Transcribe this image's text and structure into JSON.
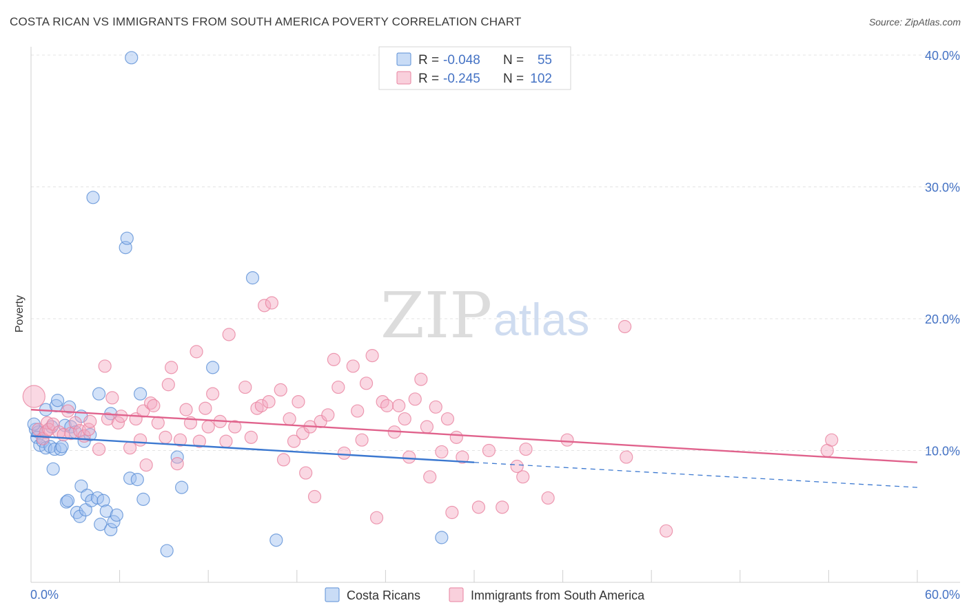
{
  "title": "COSTA RICAN VS IMMIGRANTS FROM SOUTH AMERICA POVERTY CORRELATION CHART",
  "source": "Source: ZipAtlas.com",
  "watermark": {
    "zip": "ZIP",
    "atlas": "atlas"
  },
  "legend": {
    "r_label": "R =",
    "n_label": "N =",
    "rows": [
      {
        "r": "-0.048",
        "n": "55",
        "color": "#9dbfef"
      },
      {
        "r": "-0.245",
        "n": "102",
        "color": "#f4a9c0"
      }
    ]
  },
  "bottom_legend": [
    "Costa Ricans",
    "Immigrants from South America"
  ],
  "chart_data": {
    "type": "scatter",
    "title": "COSTA RICAN VS IMMIGRANTS FROM SOUTH AMERICA POVERTY CORRELATION CHART",
    "xlabel": "",
    "ylabel": "Poverty",
    "xlim": [
      0,
      60
    ],
    "ylim": [
      0,
      40
    ],
    "x_tick_labels": [
      "0.0%",
      "60.0%"
    ],
    "y_ticks": [
      10,
      20,
      30,
      40
    ],
    "y_tick_labels": [
      "10.0%",
      "20.0%",
      "30.0%",
      "40.0%"
    ],
    "grid": true,
    "legend_position": "top-center",
    "series": [
      {
        "name": "Costa Ricans",
        "color": "#9dbfef",
        "stroke": "#5b8fd6",
        "trend": {
          "x": [
            0,
            30
          ],
          "y": [
            11.1,
            9.1
          ],
          "dash_to": [
            60,
            7.2
          ],
          "color": "#3b78d0"
        },
        "points": [
          [
            0.3,
            11.6
          ],
          [
            0.5,
            11.4
          ],
          [
            0.4,
            11.0
          ],
          [
            0.6,
            10.4
          ],
          [
            0.8,
            10.7
          ],
          [
            1.0,
            13.1
          ],
          [
            1.0,
            10.2
          ],
          [
            1.3,
            10.3
          ],
          [
            1.4,
            11.8
          ],
          [
            1.5,
            8.6
          ],
          [
            1.6,
            10.1
          ],
          [
            1.7,
            13.4
          ],
          [
            1.8,
            13.8
          ],
          [
            2.0,
            10.1
          ],
          [
            2.1,
            10.3
          ],
          [
            2.3,
            11.9
          ],
          [
            2.4,
            6.1
          ],
          [
            2.5,
            6.2
          ],
          [
            2.6,
            13.3
          ],
          [
            2.7,
            11.8
          ],
          [
            3.0,
            11.4
          ],
          [
            3.1,
            5.3
          ],
          [
            3.3,
            5.0
          ],
          [
            3.4,
            12.6
          ],
          [
            3.4,
            7.3
          ],
          [
            3.6,
            10.7
          ],
          [
            3.7,
            5.5
          ],
          [
            3.8,
            6.6
          ],
          [
            4.0,
            11.2
          ],
          [
            4.1,
            6.2
          ],
          [
            4.2,
            29.2
          ],
          [
            4.5,
            6.4
          ],
          [
            4.6,
            14.3
          ],
          [
            4.7,
            4.4
          ],
          [
            4.9,
            6.2
          ],
          [
            5.1,
            5.4
          ],
          [
            5.4,
            12.8
          ],
          [
            5.4,
            4.0
          ],
          [
            5.6,
            4.6
          ],
          [
            5.8,
            5.1
          ],
          [
            6.4,
            25.4
          ],
          [
            6.5,
            26.1
          ],
          [
            6.7,
            7.9
          ],
          [
            6.8,
            39.8
          ],
          [
            7.2,
            7.8
          ],
          [
            7.4,
            14.3
          ],
          [
            7.6,
            6.3
          ],
          [
            9.2,
            2.4
          ],
          [
            9.9,
            9.5
          ],
          [
            10.2,
            7.2
          ],
          [
            12.3,
            16.3
          ],
          [
            15.0,
            23.1
          ],
          [
            16.6,
            3.2
          ],
          [
            27.8,
            3.4
          ],
          [
            0.2,
            12.0
          ]
        ]
      },
      {
        "name": "Immigrants from South America",
        "color": "#f4a9c0",
        "stroke": "#e8829f",
        "trend": {
          "x": [
            0,
            60
          ],
          "y": [
            13.1,
            9.1
          ],
          "color": "#e0628c"
        },
        "points": [
          [
            0.2,
            14.1
          ],
          [
            0.5,
            11.6
          ],
          [
            0.8,
            10.9
          ],
          [
            1.0,
            11.4
          ],
          [
            1.1,
            12.1
          ],
          [
            1.2,
            11.6
          ],
          [
            1.5,
            12.0
          ],
          [
            1.9,
            11.4
          ],
          [
            2.2,
            11.2
          ],
          [
            2.5,
            13.0
          ],
          [
            2.7,
            11.3
          ],
          [
            3.0,
            12.1
          ],
          [
            3.3,
            11.5
          ],
          [
            3.6,
            11.1
          ],
          [
            3.9,
            11.6
          ],
          [
            4.0,
            12.2
          ],
          [
            4.6,
            10.1
          ],
          [
            5.0,
            16.4
          ],
          [
            5.2,
            12.4
          ],
          [
            5.5,
            14.0
          ],
          [
            5.9,
            12.1
          ],
          [
            6.1,
            12.6
          ],
          [
            6.7,
            10.2
          ],
          [
            7.1,
            12.4
          ],
          [
            7.4,
            10.8
          ],
          [
            7.6,
            13.0
          ],
          [
            7.8,
            8.9
          ],
          [
            8.1,
            13.6
          ],
          [
            8.3,
            13.4
          ],
          [
            8.6,
            12.1
          ],
          [
            9.1,
            11.0
          ],
          [
            9.3,
            15.0
          ],
          [
            9.5,
            16.3
          ],
          [
            9.9,
            9.0
          ],
          [
            10.1,
            10.8
          ],
          [
            10.5,
            13.1
          ],
          [
            10.8,
            12.1
          ],
          [
            11.2,
            17.5
          ],
          [
            11.4,
            10.7
          ],
          [
            11.8,
            13.2
          ],
          [
            12.0,
            11.8
          ],
          [
            12.3,
            14.3
          ],
          [
            12.8,
            12.2
          ],
          [
            13.2,
            10.7
          ],
          [
            13.4,
            18.8
          ],
          [
            13.8,
            11.8
          ],
          [
            14.5,
            14.8
          ],
          [
            14.9,
            11.0
          ],
          [
            15.3,
            13.2
          ],
          [
            15.6,
            13.4
          ],
          [
            15.8,
            21.0
          ],
          [
            16.1,
            13.7
          ],
          [
            16.3,
            21.2
          ],
          [
            16.9,
            14.6
          ],
          [
            17.1,
            9.3
          ],
          [
            17.5,
            12.4
          ],
          [
            17.8,
            10.7
          ],
          [
            18.1,
            13.7
          ],
          [
            18.4,
            11.3
          ],
          [
            18.6,
            8.3
          ],
          [
            18.9,
            11.8
          ],
          [
            19.2,
            6.5
          ],
          [
            19.6,
            12.2
          ],
          [
            20.1,
            12.7
          ],
          [
            20.5,
            16.9
          ],
          [
            20.8,
            14.8
          ],
          [
            21.2,
            9.8
          ],
          [
            21.8,
            16.4
          ],
          [
            22.1,
            13.0
          ],
          [
            22.4,
            10.8
          ],
          [
            22.7,
            15.1
          ],
          [
            23.1,
            17.2
          ],
          [
            23.4,
            4.9
          ],
          [
            23.8,
            13.7
          ],
          [
            24.1,
            13.4
          ],
          [
            24.6,
            11.4
          ],
          [
            24.9,
            13.4
          ],
          [
            25.3,
            12.4
          ],
          [
            25.6,
            9.5
          ],
          [
            26.0,
            13.9
          ],
          [
            26.4,
            15.4
          ],
          [
            26.8,
            11.8
          ],
          [
            27.0,
            8.0
          ],
          [
            27.4,
            13.3
          ],
          [
            27.8,
            9.9
          ],
          [
            28.2,
            12.4
          ],
          [
            28.5,
            5.3
          ],
          [
            28.8,
            11.0
          ],
          [
            29.2,
            9.5
          ],
          [
            30.3,
            5.7
          ],
          [
            31.0,
            10.0
          ],
          [
            31.9,
            5.7
          ],
          [
            32.9,
            8.8
          ],
          [
            33.3,
            8.0
          ],
          [
            33.5,
            10.1
          ],
          [
            35.0,
            6.4
          ],
          [
            36.3,
            10.8
          ],
          [
            40.3,
            9.5
          ],
          [
            40.2,
            19.4
          ],
          [
            43.0,
            3.9
          ],
          [
            53.9,
            10.0
          ],
          [
            54.2,
            10.8
          ]
        ]
      }
    ]
  }
}
